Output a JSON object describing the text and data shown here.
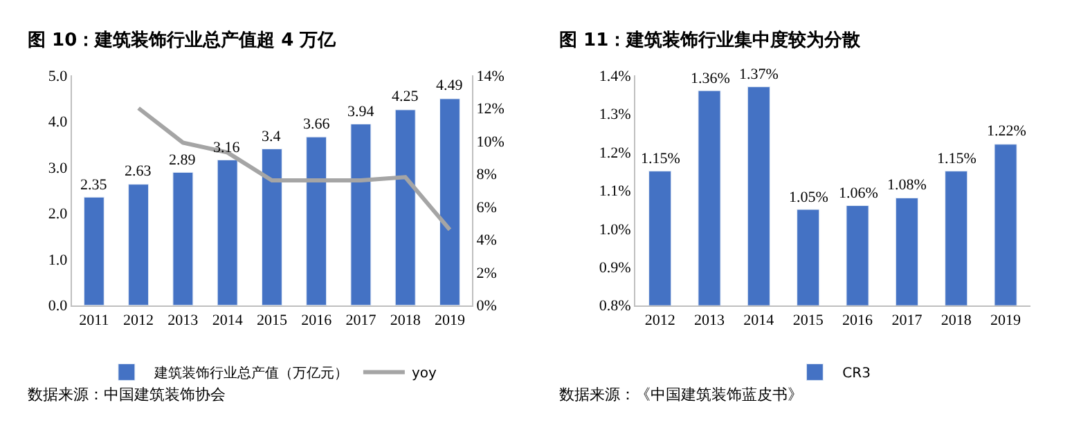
{
  "chart_data": [
    {
      "type": "bar",
      "title": "图 10：建筑装饰行业总产值超 4 万亿",
      "categories": [
        "2011",
        "2012",
        "2013",
        "2014",
        "2015",
        "2016",
        "2017",
        "2018",
        "2019"
      ],
      "series": [
        {
          "name": "建筑装饰行业总产值（万亿元）",
          "color": "#4472c4",
          "values": [
            2.35,
            2.63,
            2.89,
            3.16,
            3.4,
            3.66,
            3.94,
            4.25,
            4.49
          ],
          "value_labels": [
            "2.35",
            "2.63",
            "2.89",
            "3.16",
            "3.4",
            "3.66",
            "3.94",
            "4.25",
            "4.49"
          ]
        },
        {
          "name": "yoy",
          "type": "line",
          "axis": "y2",
          "color": "#a5a5a5",
          "values": [
            null,
            12.0,
            9.9,
            9.3,
            7.6,
            7.6,
            7.6,
            7.8,
            4.6
          ]
        }
      ],
      "ylim": [
        0,
        5
      ],
      "yticks": [
        {
          "value": 0,
          "label": "0.0"
        },
        {
          "value": 1,
          "label": "1.0"
        },
        {
          "value": 2,
          "label": "2.0"
        },
        {
          "value": 3,
          "label": "3.0"
        },
        {
          "value": 4,
          "label": "4.0"
        },
        {
          "value": 5,
          "label": "5.0"
        }
      ],
      "y2lim": [
        0,
        14
      ],
      "y2ticks": [
        {
          "value": 0,
          "label": "0%"
        },
        {
          "value": 2,
          "label": "2%"
        },
        {
          "value": 4,
          "label": "4%"
        },
        {
          "value": 6,
          "label": "6%"
        },
        {
          "value": 8,
          "label": "8%"
        },
        {
          "value": 10,
          "label": "10%"
        },
        {
          "value": 12,
          "label": "12%"
        },
        {
          "value": 14,
          "label": "14%"
        }
      ],
      "legend": "bottom",
      "annotations": [
        "数据来源：中国建筑装饰协会"
      ]
    },
    {
      "type": "bar",
      "title": "图 11：建筑装饰行业集中度较为分散",
      "categories": [
        "2012",
        "2013",
        "2014",
        "2015",
        "2016",
        "2017",
        "2018",
        "2019"
      ],
      "series": [
        {
          "name": "CR3",
          "color": "#4472c4",
          "values": [
            1.15,
            1.36,
            1.37,
            1.05,
            1.06,
            1.08,
            1.15,
            1.22
          ],
          "value_labels": [
            "1.15%",
            "1.36%",
            "1.37%",
            "1.05%",
            "1.06%",
            "1.08%",
            "1.15%",
            "1.22%"
          ]
        }
      ],
      "ylim": [
        0.8,
        1.4
      ],
      "yticks": [
        {
          "value": 0.8,
          "label": "0.8%"
        },
        {
          "value": 0.9,
          "label": "0.9%"
        },
        {
          "value": 1.0,
          "label": "1.0%"
        },
        {
          "value": 1.1,
          "label": "1.1%"
        },
        {
          "value": 1.2,
          "label": "1.2%"
        },
        {
          "value": 1.3,
          "label": "1.3%"
        },
        {
          "value": 1.4,
          "label": "1.4%"
        }
      ],
      "legend": "bottom",
      "annotations": [
        "数据来源：《中国建筑装饰蓝皮书》"
      ]
    }
  ]
}
